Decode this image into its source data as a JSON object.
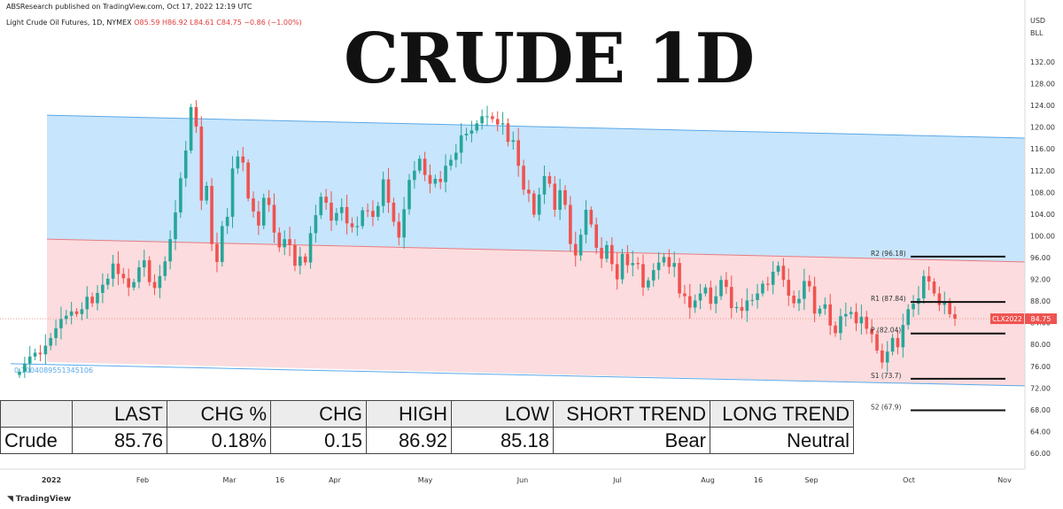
{
  "header": {
    "published": "ABSResearch published on TradingView.com, Oct 17, 2022 12:19 UTC",
    "symbol": "Light Crude Oil Futures, 1D, NYMEX",
    "ohlc": "O85.59 H86.92 L84.61 C84.75 −0.86 (−1.00%)",
    "currency": "USD",
    "currency_unit": "BLL"
  },
  "title": "CRUDE 1D",
  "colors": {
    "bull": "#26a69a",
    "bear": "#ef5350",
    "channel_blue_fill": "#bde0fb",
    "channel_red_fill": "#fbd6d8",
    "channel_blue_line": "#5aa8e8",
    "channel_red_line": "#e87b80",
    "price_tag": "#ef5350"
  },
  "chart_data": {
    "type": "candlestick",
    "x_ticks": [
      "2022",
      "Feb",
      "Mar",
      "16",
      "Apr",
      "May",
      "Jun",
      "Jul",
      "Aug",
      "16",
      "Sep",
      "Oct",
      "Nov"
    ],
    "y_ticks": [
      "132.00",
      "128.00",
      "124.00",
      "120.00",
      "116.00",
      "112.00",
      "108.00",
      "104.00",
      "100.00",
      "96.00",
      "92.00",
      "88.00",
      "84.00",
      "80.00",
      "76.00",
      "72.00",
      "68.00",
      "64.00",
      "60.00"
    ],
    "ylim": [
      58,
      134
    ],
    "last_price": 84.75,
    "price_tag": "CLX2022",
    "price_tag_value": "84.75",
    "fib_label": "0.1004089551345106",
    "pivots": [
      {
        "label": "R2 (96.18)",
        "value": 96.18
      },
      {
        "label": "R1 (87.84)",
        "value": 87.84
      },
      {
        "label": "P (82.04)",
        "value": 82.04
      },
      {
        "label": "S1 (73.7)",
        "value": 73.7
      },
      {
        "label": "S2 (67.9)",
        "value": 67.9
      }
    ],
    "channel": {
      "top_start": 122.2,
      "top_end": 118.0,
      "mid_start": 99.4,
      "mid_end": 95.2,
      "bottom_start": 76.8,
      "bottom_end": 72.4
    },
    "closes": [
      [
        75,
        76.5,
        77.8,
        78.5,
        78.2,
        79.8,
        81.2,
        83,
        84.7,
        85.3,
        86.1,
        85.6,
        86.5,
        88.8,
        87.6,
        89.5,
        91,
        92.1,
        94.9,
        93,
        92.2,
        90.5,
        91.5,
        94.2,
        95.5,
        91.5,
        90.4,
        92.6,
        95.3,
        99.4,
        104.3,
        110.6,
        115.7,
        123.7,
        120.1,
        106.5,
        109.2,
        98.5,
        95.2,
        101.8,
        103.5,
        112.4,
        114.6,
        113.5,
        106.9,
        104.5,
        101.9,
        107,
        105.7,
        100.6,
        97.9,
        99.4,
        98.3,
        94.5,
        96.2,
        95.1,
        100.5,
        103.8,
        107.2,
        106.1,
        102.8,
        104.2,
        105.3,
        102.3,
        101.6,
        101.8,
        104.7,
        104.6,
        103.5,
        105.5,
        110.4,
        106.1,
        102.6,
        99.7,
        104.9,
        110.3,
        112,
        114.2,
        111.2,
        109.6,
        110.5,
        109.9,
        112.9,
        114,
        115.3,
        118.5,
        118.8,
        119.4,
        120.7,
        122,
        122,
        121.5,
        120.5,
        120.7,
        117.3,
        117.6,
        112.9,
        108.5,
        107.8,
        103.9,
        107.6,
        111,
        109.6,
        104.8,
        108.4,
        105.7,
        98.5,
        96.4,
        100.2,
        104.8,
        102.1,
        97.8,
        95.8,
        98.3,
        94.8,
        92,
        96.7,
        94.6,
        95,
        94.8,
        90.5,
        91.8,
        93.7,
        95.1,
        96.1,
        94.3,
        95,
        89.4,
        88.9,
        86.8,
        88.1,
        89.4,
        90.5,
        87.5,
        88.9,
        91.9,
        90.6,
        86.7,
        86.9,
        86.2,
        88.1,
        88.2,
        89.4,
        91.2,
        91,
        93.4,
        94.5,
        91.9,
        89,
        87.6,
        88.4,
        91.7,
        90.7,
        85.7,
        86.6,
        87.4,
        83.5,
        82.1,
        85.2,
        85.6,
        86,
        83.9,
        85.1,
        82.9,
        81.9,
        78.9,
        76.7,
        78.7,
        81.2,
        79.5,
        83.6,
        86.5,
        87.5,
        88.5,
        92.6,
        91.6,
        89.4,
        87.3,
        87.8,
        85.6,
        84.75
      ]
    ]
  },
  "stats_table": {
    "headers": [
      "",
      "LAST",
      "CHG %",
      "CHG",
      "HIGH",
      "LOW",
      "SHORT TREND",
      "LONG TREND"
    ],
    "rows": [
      [
        "Crude",
        "85.76",
        "0.18%",
        "0.15",
        "86.92",
        "85.18",
        "Bear",
        "Neutral"
      ]
    ]
  },
  "footer": {
    "logo_text": "TradingView"
  }
}
